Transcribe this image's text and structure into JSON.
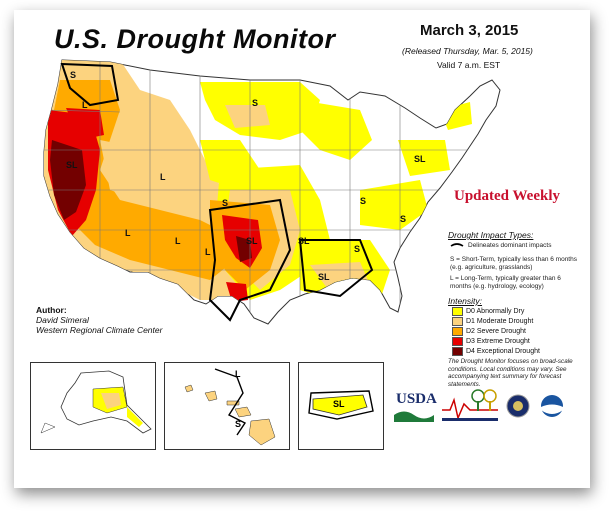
{
  "header": {
    "title": "U.S. Drought Monitor",
    "date": "March 3, 2015",
    "released": "(Released Thursday, Mar. 5, 2015)",
    "valid": "Valid 7 a.m. EST"
  },
  "banner": "Updated Weekly",
  "legend": {
    "impact_heading": "Drought Impact Types:",
    "delineates": "Delineates dominant impacts",
    "short_term": "S = Short-Term, typically less than 6 months (e.g. agriculture, grasslands)",
    "long_term": "L = Long-Term, typically greater than 6 months (e.g. hydrology, ecology)",
    "intensity_heading": "Intensity:",
    "categories": [
      {
        "label": "D0 Abnormally Dry",
        "color": "#ffff00"
      },
      {
        "label": "D1 Moderate Drought",
        "color": "#fcd37f"
      },
      {
        "label": "D2 Severe Drought",
        "color": "#ffaa00"
      },
      {
        "label": "D3 Extreme Drought",
        "color": "#e60000"
      },
      {
        "label": "D4 Exceptional Drought",
        "color": "#730000"
      }
    ],
    "note": "The Drought Monitor focuses on broad-scale conditions. Local conditions may vary. See accompanying text summary for forecast statements."
  },
  "author": {
    "heading": "Author:",
    "name": "David Simeral",
    "org": "Western Regional Climate Center"
  },
  "map_labels": {
    "sl": "SL",
    "s": "S",
    "l": "L"
  },
  "logos": {
    "usda": "USDA"
  }
}
